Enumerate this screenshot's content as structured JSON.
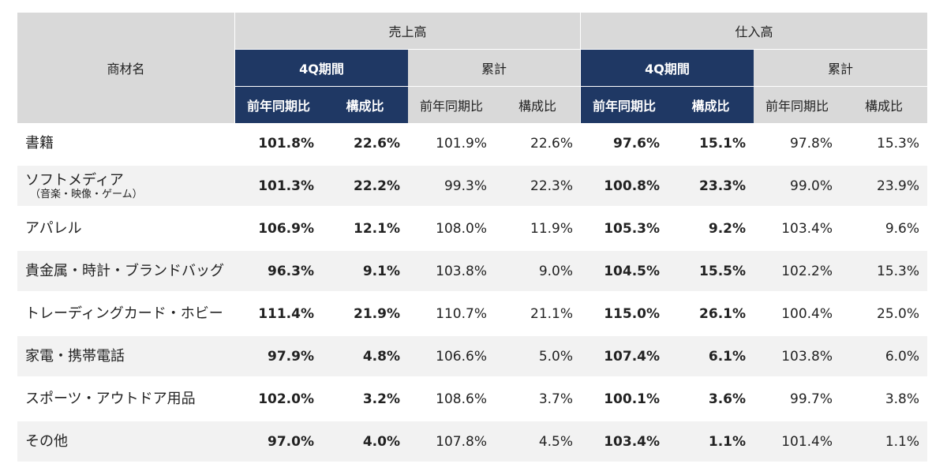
{
  "header": {
    "name_col": "商材名",
    "sales": "売上高",
    "purchase": "仕入高",
    "period_4q": "4Q期間",
    "cumulative": "累計",
    "yoy": "前年同期比",
    "share": "構成比"
  },
  "rows": [
    {
      "name": "書籍",
      "sub": "",
      "v": [
        "101.8%",
        "22.6%",
        "101.9%",
        "22.6%",
        "97.6%",
        "15.1%",
        "97.8%",
        "15.3%"
      ]
    },
    {
      "name": "ソフトメディア",
      "sub": "（音楽・映像・ゲーム）",
      "v": [
        "101.3%",
        "22.2%",
        "99.3%",
        "22.3%",
        "100.8%",
        "23.3%",
        "99.0%",
        "23.9%"
      ]
    },
    {
      "name": "アパレル",
      "sub": "",
      "v": [
        "106.9%",
        "12.1%",
        "108.0%",
        "11.9%",
        "105.3%",
        "9.2%",
        "103.4%",
        "9.6%"
      ]
    },
    {
      "name": "貴金属・時計・ブランドバッグ",
      "sub": "",
      "v": [
        "96.3%",
        "9.1%",
        "103.8%",
        "9.0%",
        "104.5%",
        "15.5%",
        "102.2%",
        "15.3%"
      ]
    },
    {
      "name": "トレーディングカード・ホビー",
      "sub": "",
      "v": [
        "111.4%",
        "21.9%",
        "110.7%",
        "21.1%",
        "115.0%",
        "26.1%",
        "100.4%",
        "25.0%"
      ]
    },
    {
      "name": "家電・携帯電話",
      "sub": "",
      "v": [
        "97.9%",
        "4.8%",
        "106.6%",
        "5.0%",
        "107.4%",
        "6.1%",
        "103.8%",
        "6.0%"
      ]
    },
    {
      "name": "スポーツ・アウトドア用品",
      "sub": "",
      "v": [
        "102.0%",
        "3.2%",
        "108.6%",
        "3.7%",
        "100.1%",
        "3.6%",
        "99.7%",
        "3.8%"
      ]
    },
    {
      "name": "その他",
      "sub": "",
      "v": [
        "97.0%",
        "4.0%",
        "107.8%",
        "4.5%",
        "103.4%",
        "1.1%",
        "101.4%",
        "1.1%"
      ]
    }
  ],
  "colors": {
    "navy": "#1f3864",
    "header_gray": "#d9d9d9",
    "stripe": "#f2f2f2"
  }
}
